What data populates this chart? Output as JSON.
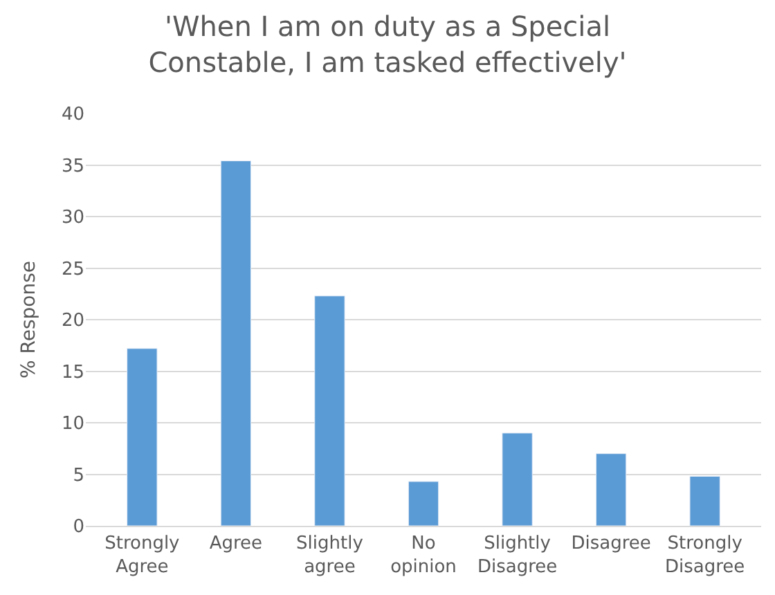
{
  "chart_data": {
    "type": "bar",
    "title": "'When I am on duty as a Special Constable, I am tasked effectively'",
    "ylabel": "% Response",
    "categories": [
      "Strongly Agree",
      "Agree",
      "Slightly agree",
      "No opinion",
      "Slightly Disagree",
      "Disagree",
      "Strongly Disagree"
    ],
    "values": [
      17.2,
      35.4,
      22.3,
      4.3,
      9.0,
      7.0,
      4.8
    ],
    "color": "#5b9bd5",
    "ylim": [
      0,
      40
    ],
    "yticks": [
      0,
      5,
      10,
      15,
      20,
      25,
      30,
      35,
      40
    ],
    "grid": "y"
  }
}
